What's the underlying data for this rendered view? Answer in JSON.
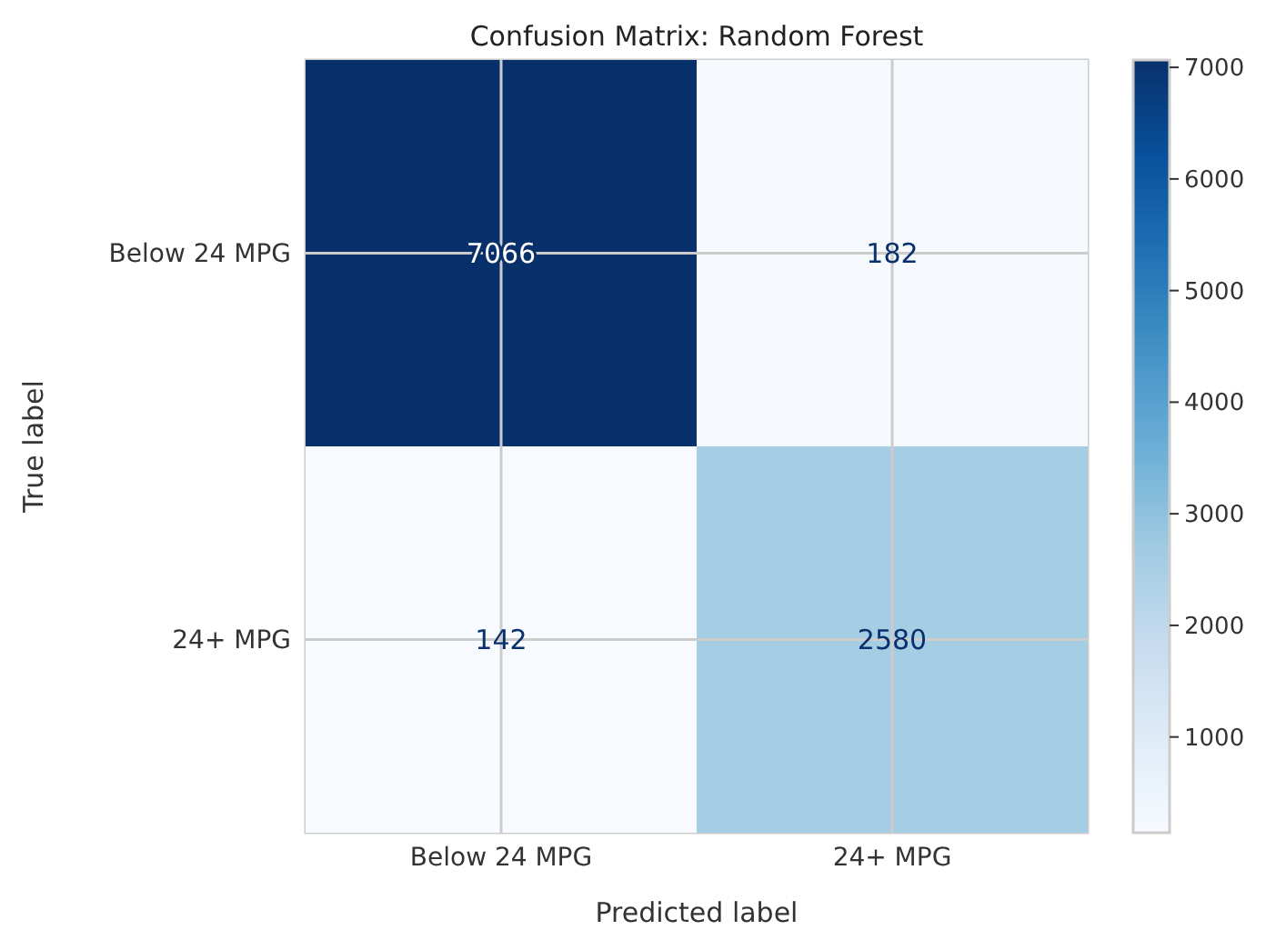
{
  "chart_data": {
    "type": "heatmap",
    "title": "Confusion Matrix: Random Forest",
    "xlabel": "Predicted label",
    "ylabel": "True label",
    "categories": [
      "Below 24 MPG",
      "24+ MPG"
    ],
    "y_categories": [
      "Below 24 MPG",
      "24+ MPG"
    ],
    "cells": [
      [
        7066,
        182
      ],
      [
        142,
        2580
      ]
    ],
    "clim": [
      142,
      7066
    ],
    "cticks": [
      1000,
      2000,
      3000,
      4000,
      5000,
      6000,
      7000
    ],
    "grid": true,
    "data_labels": true
  }
}
